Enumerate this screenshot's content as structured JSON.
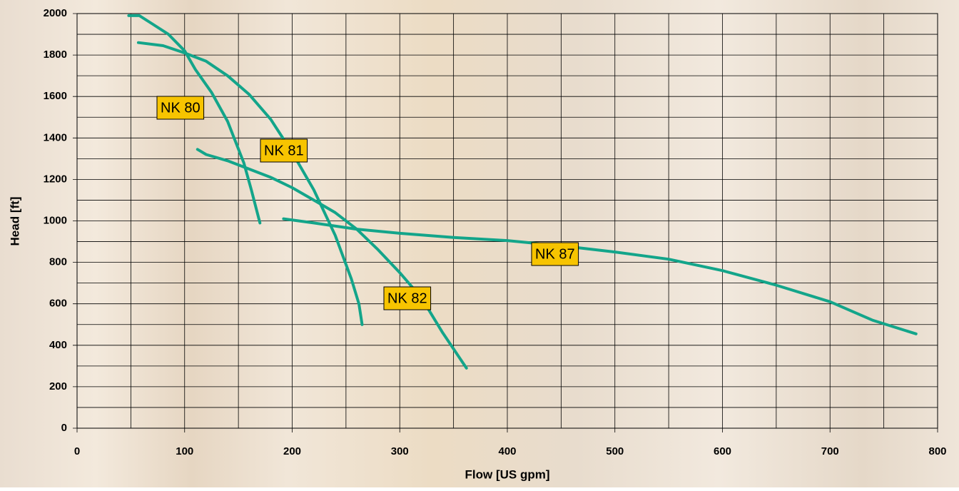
{
  "chart_data": {
    "type": "line",
    "xlabel": "Flow [US gpm]",
    "ylabel": "Head [ft]",
    "xlim": [
      0,
      800
    ],
    "ylim": [
      0,
      2000
    ],
    "xticks": [
      0,
      100,
      200,
      300,
      400,
      500,
      600,
      700,
      800
    ],
    "yticks": [
      0,
      200,
      400,
      600,
      800,
      1000,
      1200,
      1400,
      1600,
      1800,
      2000
    ],
    "x_minor_ticks": [
      50,
      150,
      250,
      350,
      450,
      550,
      650,
      750
    ],
    "y_minor_ticks": [
      100,
      300,
      500,
      700,
      900,
      1100,
      1300,
      1500,
      1700,
      1900
    ],
    "grid": true,
    "series": [
      {
        "name": "NK 80",
        "color": "#13a58a",
        "x": [
          48,
          58,
          70,
          85,
          100,
          110,
          125,
          140,
          155,
          162,
          170
        ],
        "values": [
          1990,
          1990,
          1950,
          1900,
          1820,
          1730,
          1620,
          1480,
          1280,
          1150,
          990
        ]
      },
      {
        "name": "NK 81",
        "color": "#13a58a",
        "x": [
          57,
          80,
          100,
          120,
          140,
          160,
          180,
          200,
          220,
          240,
          255,
          262,
          265
        ],
        "values": [
          1860,
          1845,
          1810,
          1770,
          1700,
          1610,
          1490,
          1330,
          1150,
          930,
          720,
          600,
          500
        ]
      },
      {
        "name": "NK 82",
        "color": "#13a58a",
        "x": [
          112,
          120,
          140,
          160,
          180,
          200,
          220,
          240,
          260,
          280,
          300,
          320,
          340,
          362
        ],
        "values": [
          1345,
          1320,
          1290,
          1250,
          1210,
          1160,
          1100,
          1040,
          960,
          860,
          750,
          630,
          460,
          290
        ]
      },
      {
        "name": "NK 87",
        "color": "#13a58a",
        "x": [
          192,
          220,
          260,
          300,
          350,
          400,
          450,
          500,
          550,
          600,
          650,
          700,
          740,
          780
        ],
        "values": [
          1010,
          990,
          960,
          940,
          920,
          905,
          880,
          850,
          815,
          760,
          690,
          610,
          520,
          455
        ]
      }
    ]
  }
}
